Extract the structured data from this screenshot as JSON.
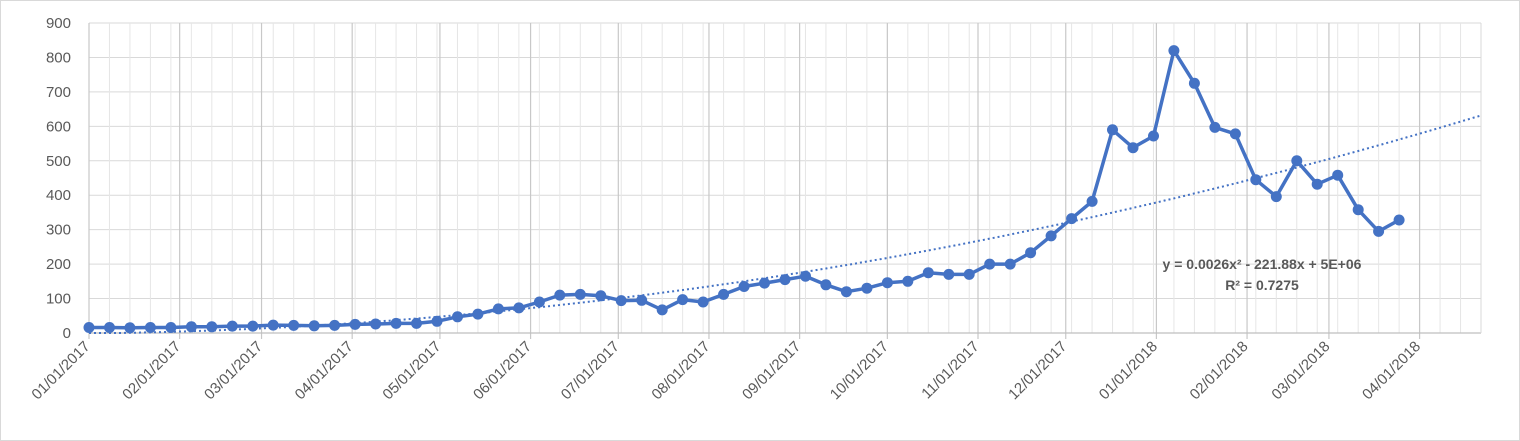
{
  "chart_data": {
    "type": "line",
    "title": "",
    "xlabel": "",
    "ylabel": "",
    "ylim": [
      0,
      900
    ],
    "y_ticks": [
      "0",
      "100",
      "200",
      "300",
      "400",
      "500",
      "600",
      "700",
      "800",
      "900"
    ],
    "x_ticks": [
      "01/01/2017",
      "02/01/2017",
      "03/01/2017",
      "04/01/2017",
      "05/01/2017",
      "06/01/2017",
      "07/01/2017",
      "08/01/2017",
      "09/01/2017",
      "10/01/2017",
      "11/01/2017",
      "12/01/2017",
      "01/01/2018",
      "02/01/2018",
      "03/01/2018",
      "04/01/2018"
    ],
    "xlim": [
      "2017-01-01",
      "2018-04-22"
    ],
    "grid": true,
    "legend": "none",
    "series": [
      {
        "color": "#4472c4",
        "x": [
          "2017-01-01",
          "2017-01-08",
          "2017-01-15",
          "2017-01-22",
          "2017-01-29",
          "2017-02-05",
          "2017-02-12",
          "2017-02-19",
          "2017-02-26",
          "2017-03-05",
          "2017-03-12",
          "2017-03-19",
          "2017-03-26",
          "2017-04-02",
          "2017-04-09",
          "2017-04-16",
          "2017-04-23",
          "2017-04-30",
          "2017-05-07",
          "2017-05-14",
          "2017-05-21",
          "2017-05-28",
          "2017-06-04",
          "2017-06-11",
          "2017-06-18",
          "2017-06-25",
          "2017-07-02",
          "2017-07-09",
          "2017-07-16",
          "2017-07-23",
          "2017-07-30",
          "2017-08-06",
          "2017-08-13",
          "2017-08-20",
          "2017-08-27",
          "2017-09-03",
          "2017-09-10",
          "2017-09-17",
          "2017-09-24",
          "2017-10-01",
          "2017-10-08",
          "2017-10-15",
          "2017-10-22",
          "2017-10-29",
          "2017-11-05",
          "2017-11-12",
          "2017-11-19",
          "2017-11-26",
          "2017-12-03",
          "2017-12-10",
          "2017-12-17",
          "2017-12-24",
          "2017-12-31",
          "2018-01-07",
          "2018-01-14",
          "2018-01-21",
          "2018-01-28",
          "2018-02-04",
          "2018-02-11",
          "2018-02-18",
          "2018-02-25",
          "2018-03-04",
          "2018-03-11",
          "2018-03-18",
          "2018-03-25"
        ],
        "values": [
          16,
          16,
          15,
          16,
          16,
          18,
          18,
          20,
          20,
          23,
          22,
          21,
          22,
          25,
          26,
          28,
          28,
          34,
          47,
          55,
          70,
          73,
          90,
          110,
          112,
          108,
          94,
          95,
          67,
          97,
          90,
          112,
          135,
          145,
          155,
          165,
          140,
          120,
          130,
          146,
          150,
          175,
          170,
          170,
          200,
          200,
          233,
          282,
          332,
          382,
          590,
          538,
          572,
          820,
          725,
          597,
          578,
          445,
          396,
          500,
          432,
          458,
          358,
          295,
          328
        ]
      }
    ],
    "trendline": {
      "type": "polynomial-2",
      "color": "#4472c4",
      "equation": "y = 0.0026x² - 221.88x + 5E+06",
      "r2": "R² = 0.7275"
    }
  }
}
